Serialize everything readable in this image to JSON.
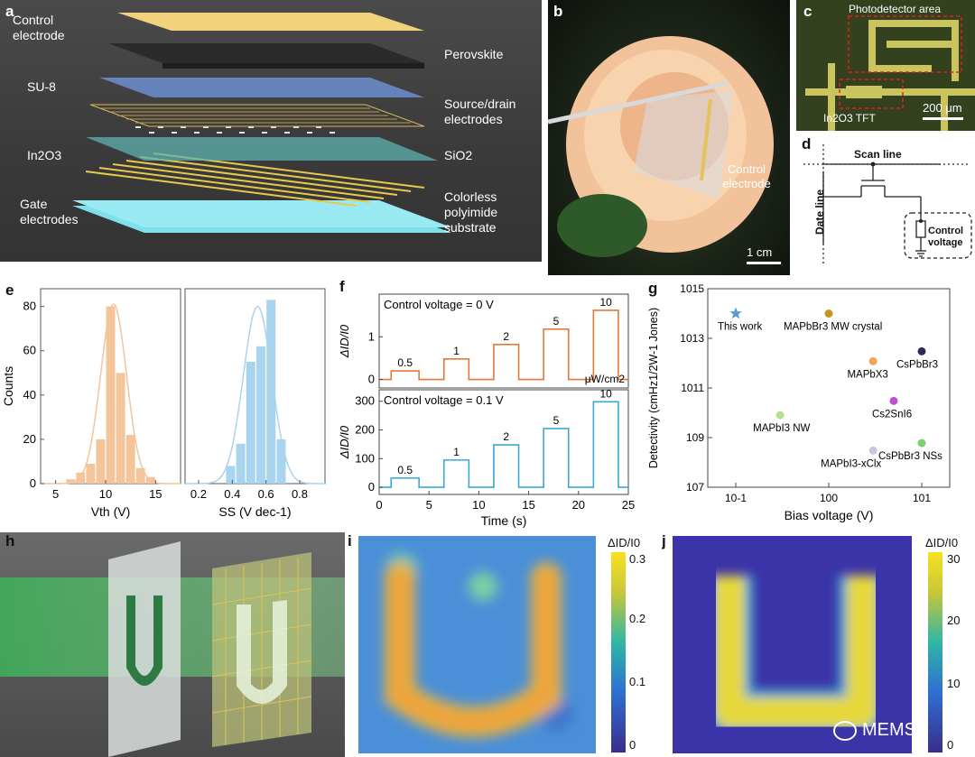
{
  "panels": {
    "a": {
      "label": "a",
      "layers": {
        "control_electrode": "Control electrode",
        "perovskite": "Perovskite",
        "su8": "SU-8",
        "source_drain": "Source/drain electrodes",
        "in2o3": "In2O3",
        "sio2": "SiO2",
        "gate": "Gate electrodes",
        "substrate": "Colorless polyimide substrate"
      }
    },
    "b": {
      "label": "b",
      "annotation": "Control electrode",
      "scale": "1 cm"
    },
    "c": {
      "label": "c",
      "area": "Photodetector area",
      "tft": "In2O3 TFT",
      "scale": "200 μm"
    },
    "d": {
      "label": "d",
      "scan_line": "Scan line",
      "date_line": "Date line",
      "control_voltage": "Control voltage"
    },
    "e": {
      "label": "e"
    },
    "f": {
      "label": "f"
    },
    "g": {
      "label": "g"
    },
    "h": {
      "label": "h"
    },
    "i": {
      "label": "i",
      "cbar_title": "ΔID/I0",
      "cbar_ticks": [
        "0.3",
        "0.2",
        "0.1",
        "0"
      ]
    },
    "j": {
      "label": "j",
      "cbar_title": "ΔID/I0",
      "cbar_ticks": [
        "30",
        "20",
        "10",
        "0"
      ]
    }
  },
  "watermark": "MEMS",
  "chart_data": [
    {
      "id": "e-left",
      "type": "bar",
      "xlabel": "Vth (V)",
      "ylabel": "Counts",
      "xlim": [
        3.5,
        17.5
      ],
      "ylim": [
        0,
        88
      ],
      "xticks": [
        5,
        10,
        15
      ],
      "yticks": [
        0,
        20,
        40,
        60,
        80
      ],
      "bin_centers": [
        6.5,
        7.5,
        8.5,
        9.5,
        10.5,
        11.5,
        12.5,
        13.5,
        14.5
      ],
      "values": [
        2,
        5,
        9,
        20,
        80,
        50,
        22,
        7,
        3
      ],
      "fit": {
        "type": "gaussian",
        "mean": 10.8,
        "sigma": 1.3,
        "peak": 81
      },
      "color": "#f4c49a"
    },
    {
      "id": "e-right",
      "type": "bar",
      "xlabel": "SS (V dec-1)",
      "xlim": [
        0.12,
        0.95
      ],
      "ylim": [
        0,
        88
      ],
      "xticks": [
        0.2,
        0.4,
        0.6,
        0.8
      ],
      "bin_centers": [
        0.39,
        0.45,
        0.51,
        0.57,
        0.63,
        0.69
      ],
      "values": [
        8,
        18,
        55,
        62,
        83,
        20
      ],
      "fit": {
        "type": "gaussian",
        "mean": 0.55,
        "sigma": 0.085,
        "peak": 80
      },
      "color": "#a9d4f0"
    },
    {
      "id": "f-top",
      "type": "line",
      "title": "Control voltage = 0 V",
      "ylabel": "ΔID/I0",
      "unit": "μW/cm2",
      "xlim": [
        0,
        25
      ],
      "ylim": [
        -0.2,
        2.0
      ],
      "yticks": [
        0,
        1
      ],
      "pulses": [
        {
          "start": 1.2,
          "end": 4.0,
          "value": 0.2,
          "label": "0.5"
        },
        {
          "start": 6.5,
          "end": 9.0,
          "value": 0.48,
          "label": "1"
        },
        {
          "start": 11.5,
          "end": 14.0,
          "value": 0.82,
          "label": "2"
        },
        {
          "start": 16.5,
          "end": 19.0,
          "value": 1.18,
          "label": "5"
        },
        {
          "start": 21.5,
          "end": 24.0,
          "value": 1.62,
          "label": "10"
        }
      ],
      "color": "#e07a3a"
    },
    {
      "id": "f-bottom",
      "type": "line",
      "title": "Control voltage = 0.1 V",
      "ylabel": "ΔID/I0",
      "xlabel": "Time (s)",
      "xlim": [
        0,
        25
      ],
      "ylim": [
        -25,
        340
      ],
      "xticks": [
        0,
        5,
        10,
        15,
        20,
        25
      ],
      "yticks": [
        0,
        100,
        200,
        300
      ],
      "pulses": [
        {
          "start": 1.2,
          "end": 4.0,
          "value": 32,
          "label": "0.5"
        },
        {
          "start": 6.5,
          "end": 9.0,
          "value": 95,
          "label": "1"
        },
        {
          "start": 11.5,
          "end": 14.0,
          "value": 148,
          "label": "2"
        },
        {
          "start": 16.5,
          "end": 19.0,
          "value": 205,
          "label": "5"
        },
        {
          "start": 21.5,
          "end": 24.0,
          "value": 298,
          "label": "10"
        }
      ],
      "color": "#3aa8d4"
    },
    {
      "id": "g",
      "type": "scatter",
      "xlabel": "Bias voltage (V)",
      "ylabel": "Detectivity (cmHz1/2W-1 Jones)",
      "xscale": "log",
      "yscale": "log",
      "xlim": [
        0.05,
        20
      ],
      "ylim": [
        10000000.0,
        1000000000000000.0
      ],
      "xticks": [
        "10-1",
        "100",
        "101"
      ],
      "yticks": [
        "107",
        "109",
        "1011",
        "1013",
        "1015"
      ],
      "points": [
        {
          "name": "This work",
          "x": 0.1,
          "y": 100000000000000.0,
          "color": "#5b9bd5",
          "marker": "star"
        },
        {
          "name": "MAPbBr3 MW crystal",
          "x": 1.0,
          "y": 100000000000000.0,
          "color": "#c8961e",
          "marker": "circle"
        },
        {
          "name": "MAPbX3",
          "x": 3.0,
          "y": 1200000000000.0,
          "color": "#f4a35a",
          "marker": "circle"
        },
        {
          "name": "CsPbBr3",
          "x": 10.0,
          "y": 3000000000000.0,
          "color": "#2e2a5c",
          "marker": "circle"
        },
        {
          "name": "Cs2SnI6",
          "x": 5.0,
          "y": 30000000000.0,
          "color": "#c04fd1",
          "marker": "circle"
        },
        {
          "name": "MAPbI3 NW",
          "x": 0.3,
          "y": 8000000000.0,
          "color": "#b8e08a",
          "marker": "circle"
        },
        {
          "name": "MAPbI3-xClx",
          "x": 3.0,
          "y": 300000000.0,
          "color": "#c7c7d9",
          "marker": "circle"
        },
        {
          "name": "CsPbBr3 NSs",
          "x": 10.0,
          "y": 600000000.0,
          "color": "#7fcf6e",
          "marker": "circle"
        }
      ]
    }
  ]
}
